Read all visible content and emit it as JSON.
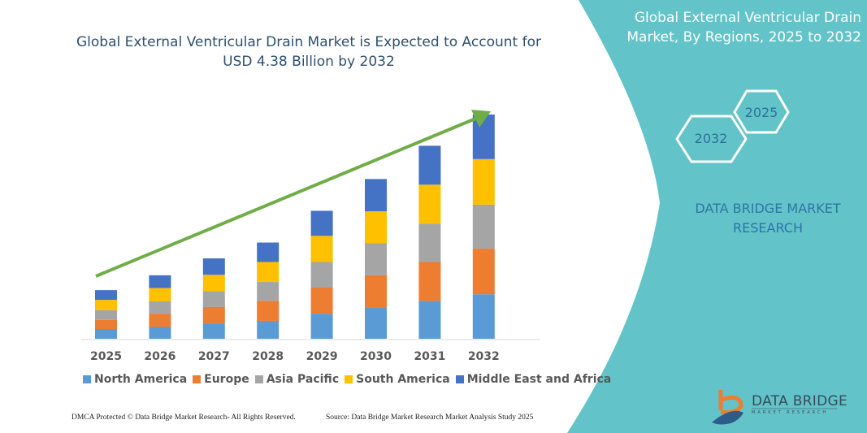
{
  "title": "Global External Ventricular Drain Market is Expected to Account for USD 4.38 Billion by 2032",
  "side_panel": {
    "title": "Global External Ventricular Drain Market, By Regions, 2025 to 2032",
    "hex_start": "2025",
    "hex_end": "2032",
    "brand": "DATA BRIDGE MARKET RESEARCH",
    "logo_text": "DATA BRIDGE",
    "logo_sub": "MARKET RESEARCH",
    "color": "#62c3c8"
  },
  "footer": {
    "left": "DMCA Protected © Data Bridge Market Research- All Rights Reserved.",
    "right": "Source: Data Bridge Market Research Market Analysis Study 2025"
  },
  "chart_data": {
    "type": "bar",
    "stacked": true,
    "categories": [
      "2025",
      "2026",
      "2027",
      "2028",
      "2029",
      "2030",
      "2031",
      "2032"
    ],
    "series": [
      {
        "name": "North America",
        "color": "#5b9bd5",
        "values": [
          0.19,
          0.23,
          0.3,
          0.35,
          0.49,
          0.61,
          0.74,
          0.87
        ]
      },
      {
        "name": "Europe",
        "color": "#ed7d31",
        "values": [
          0.18,
          0.26,
          0.32,
          0.39,
          0.51,
          0.63,
          0.76,
          0.89
        ]
      },
      {
        "name": "Asia Pacific",
        "color": "#a5a5a5",
        "values": [
          0.19,
          0.24,
          0.31,
          0.37,
          0.5,
          0.63,
          0.75,
          0.86
        ]
      },
      {
        "name": "South America",
        "color": "#ffc000",
        "values": [
          0.2,
          0.26,
          0.32,
          0.39,
          0.51,
          0.62,
          0.76,
          0.89
        ]
      },
      {
        "name": "Middle East and Africa",
        "color": "#4472c4",
        "values": [
          0.19,
          0.25,
          0.32,
          0.38,
          0.49,
          0.63,
          0.76,
          0.87
        ]
      }
    ],
    "ylim": [
      0,
      4.38
    ],
    "grid": false,
    "legend": "bottom",
    "trend_arrow_color": "#70ad47"
  }
}
